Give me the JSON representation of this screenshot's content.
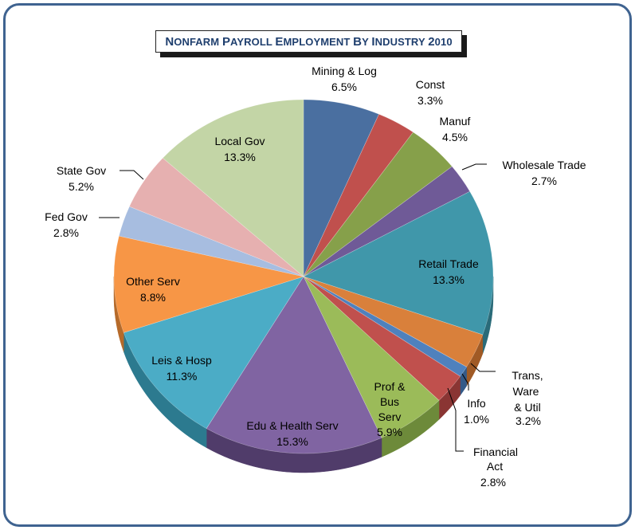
{
  "chart_data": {
    "type": "pie",
    "title": "Nonfarm Payroll Employment by Industry 2010",
    "start_angle_deg": 0,
    "direction": "clockwise",
    "style": "3d",
    "slices": [
      {
        "label": "Mining & Log",
        "value": 6.5,
        "text": "6.5%",
        "color": "#4a6fa0",
        "side": "#30507a"
      },
      {
        "label": "Const",
        "value": 3.3,
        "text": "3.3%",
        "color": "#c0504d",
        "side": "#8a3533"
      },
      {
        "label": "Manuf",
        "value": 4.5,
        "text": "4.5%",
        "color": "#86a04a",
        "side": "#5f7433"
      },
      {
        "label": "Wholesale Trade",
        "value": 2.7,
        "text": "2.7%",
        "color": "#6f5a97",
        "side": "#4c3d69"
      },
      {
        "label": "Retail Trade",
        "value": 13.3,
        "text": "13.3%",
        "color": "#4097aa",
        "side": "#2a6b79"
      },
      {
        "label": "Trans, Ware & Util",
        "value": 3.2,
        "text": "3.2%",
        "color": "#d9803b",
        "side": "#a05a25"
      },
      {
        "label": "Info",
        "value": 1.0,
        "text": "1.0%",
        "color": "#4f81bd",
        "side": "#345a88"
      },
      {
        "label": "Financial Act",
        "value": 2.8,
        "text": "2.8%",
        "color": "#c0504d",
        "side": "#8a3533"
      },
      {
        "label": "Prof & Bus Serv",
        "value": 5.9,
        "text": "5.9%",
        "color": "#9bbb59",
        "side": "#6d8a3a"
      },
      {
        "label": "Edu & Health Serv",
        "value": 15.3,
        "text": "15.3%",
        "color": "#8064a2",
        "side": "#503c6a"
      },
      {
        "label": "Leis & Hosp",
        "value": 11.3,
        "text": "11.3%",
        "color": "#4bacc6",
        "side": "#2c7a8f"
      },
      {
        "label": "Other Serv",
        "value": 8.8,
        "text": "8.8%",
        "color": "#f79646",
        "side": "#b66a2a"
      },
      {
        "label": "Fed Gov",
        "value": 2.8,
        "text": "2.8%",
        "color": "#a7bde0",
        "side": "#7f95b8"
      },
      {
        "label": "State Gov",
        "value": 5.2,
        "text": "5.2%",
        "color": "#e6b0b0",
        "side": "#b98585"
      },
      {
        "label": "Local Gov",
        "value": 13.3,
        "text": "13.3%",
        "color": "#c3d5a6",
        "side": "#95a878"
      }
    ]
  }
}
